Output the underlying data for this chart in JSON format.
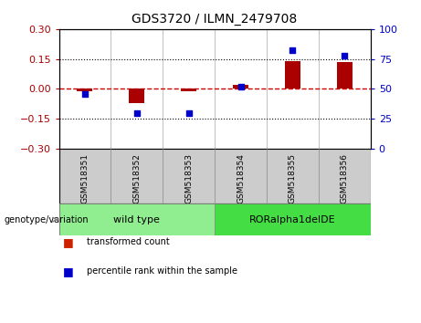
{
  "title": "GDS3720 / ILMN_2479708",
  "samples": [
    "GSM518351",
    "GSM518352",
    "GSM518353",
    "GSM518354",
    "GSM518355",
    "GSM518356"
  ],
  "red_values": [
    -0.01,
    -0.07,
    -0.01,
    0.02,
    0.14,
    0.135
  ],
  "blue_values_pct": [
    46,
    30,
    30,
    52,
    82,
    78
  ],
  "ylim_left": [
    -0.3,
    0.3
  ],
  "ylim_right": [
    0,
    100
  ],
  "yticks_left": [
    -0.3,
    -0.15,
    0,
    0.15,
    0.3
  ],
  "yticks_right": [
    0,
    25,
    50,
    75,
    100
  ],
  "hlines": [
    0.15,
    -0.15
  ],
  "red_color": "#aa0000",
  "blue_color": "#0000cc",
  "dashed_zero_color": "#cc0000",
  "groups": [
    {
      "label": "wild type",
      "samples": [
        0,
        1,
        2
      ],
      "color": "#90ee90"
    },
    {
      "label": "RORalpha1delDE",
      "samples": [
        3,
        4,
        5
      ],
      "color": "#44dd44"
    }
  ],
  "group_row_label": "genotype/variation",
  "legend_items": [
    {
      "color": "#cc2200",
      "label": "transformed count"
    },
    {
      "color": "#0000cc",
      "label": "percentile rank within the sample"
    }
  ],
  "bar_width": 0.3,
  "marker_size": 6,
  "label_bg": "#cccccc",
  "label_border": "#888888"
}
